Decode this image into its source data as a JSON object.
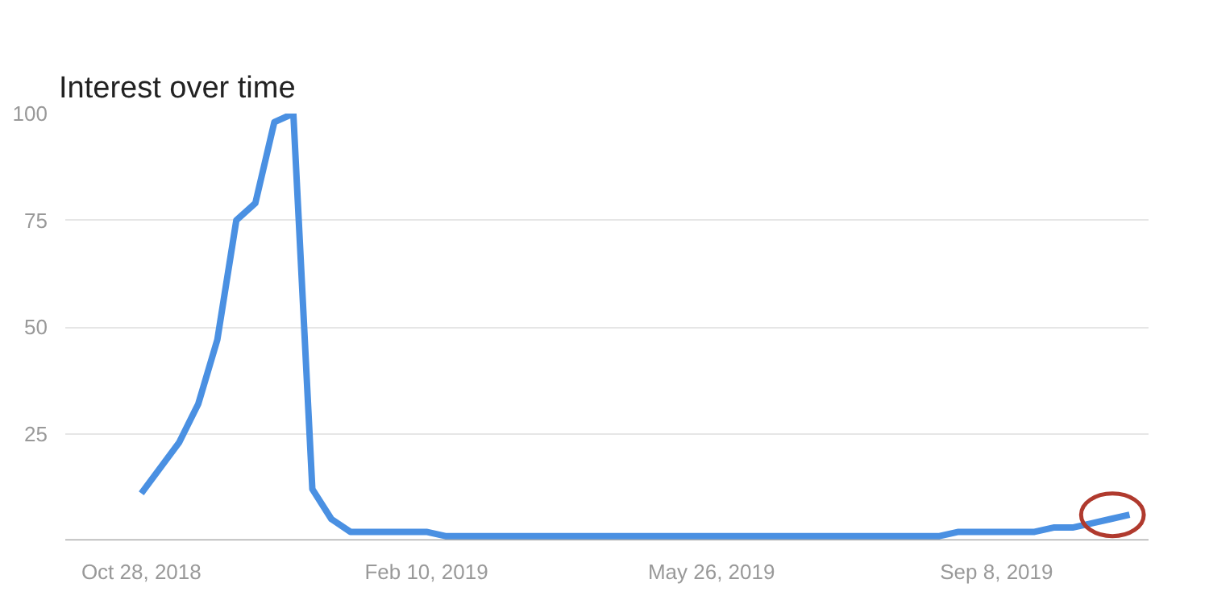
{
  "chart_data": {
    "type": "line",
    "title": "Interest over time",
    "x": [
      "2018-10-28",
      "2018-11-04",
      "2018-11-11",
      "2018-11-18",
      "2018-11-25",
      "2018-12-02",
      "2018-12-09",
      "2018-12-16",
      "2018-12-23",
      "2018-12-30",
      "2019-01-06",
      "2019-01-13",
      "2019-01-20",
      "2019-01-27",
      "2019-02-03",
      "2019-02-10",
      "2019-02-17",
      "2019-02-24",
      "2019-03-03",
      "2019-03-10",
      "2019-03-17",
      "2019-03-24",
      "2019-03-31",
      "2019-04-07",
      "2019-04-14",
      "2019-04-21",
      "2019-04-28",
      "2019-05-05",
      "2019-05-12",
      "2019-05-19",
      "2019-05-26",
      "2019-06-02",
      "2019-06-09",
      "2019-06-16",
      "2019-06-23",
      "2019-06-30",
      "2019-07-07",
      "2019-07-14",
      "2019-07-21",
      "2019-07-28",
      "2019-08-04",
      "2019-08-11",
      "2019-08-18",
      "2019-08-25",
      "2019-09-01",
      "2019-09-08",
      "2019-09-15",
      "2019-09-22",
      "2019-09-29",
      "2019-10-06",
      "2019-10-13",
      "2019-10-20",
      "2019-10-27"
    ],
    "series": [
      {
        "color": "#4a90e2",
        "values": [
          11,
          17,
          23,
          32,
          47,
          75,
          79,
          98,
          100,
          12,
          5,
          2,
          2,
          2,
          2,
          2,
          1,
          1,
          1,
          1,
          1,
          1,
          1,
          1,
          1,
          1,
          1,
          1,
          1,
          1,
          1,
          1,
          1,
          1,
          1,
          1,
          1,
          1,
          1,
          1,
          1,
          1,
          1,
          2,
          2,
          2,
          2,
          2,
          3,
          3,
          4,
          5,
          6
        ]
      }
    ],
    "xlim": [
      "2018-09-30",
      "2019-11-03"
    ],
    "xticks": [
      {
        "value": "2018-10-28",
        "label": "Oct 28, 2018"
      },
      {
        "value": "2019-02-10",
        "label": "Feb 10, 2019"
      },
      {
        "value": "2019-05-26",
        "label": "May 26, 2019"
      },
      {
        "value": "2019-09-08",
        "label": "Sep 8, 2019"
      }
    ],
    "ylim": [
      0,
      100
    ],
    "yticks": [
      {
        "value": 0,
        "label": null
      },
      25,
      50,
      75,
      100
    ],
    "grid": "y",
    "marker": "none",
    "line_style": "solid"
  }
}
